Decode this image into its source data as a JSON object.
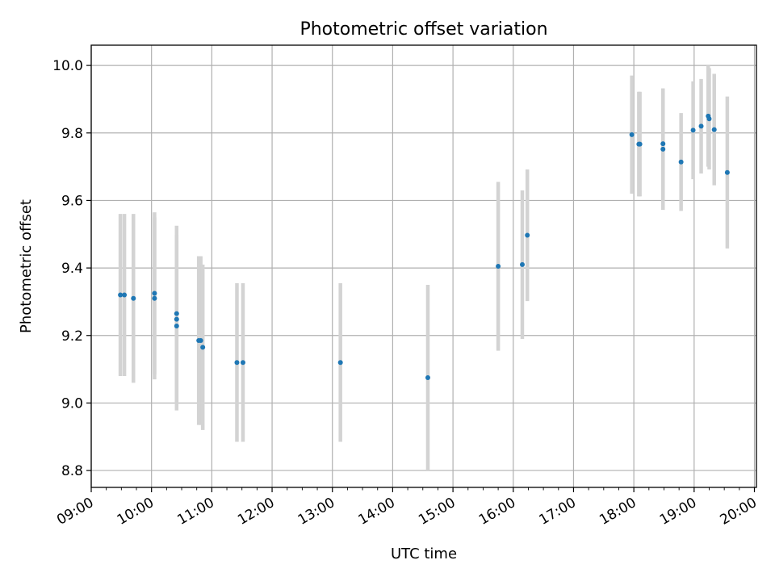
{
  "chart_data": {
    "type": "scatter",
    "title": "Photometric offset variation",
    "xlabel": "UTC time",
    "ylabel": "Photometric offset",
    "xlim": [
      "09:00",
      "20:02"
    ],
    "ylim": [
      8.75,
      10.06
    ],
    "x_ticks": [
      "09:00",
      "10:00",
      "11:00",
      "12:00",
      "13:00",
      "14:00",
      "15:00",
      "16:00",
      "17:00",
      "18:00",
      "19:00",
      "20:00"
    ],
    "y_ticks": [
      8.8,
      9.0,
      9.2,
      9.4,
      9.6,
      9.8,
      10.0
    ],
    "y_tick_labels": [
      "8.8",
      "9.0",
      "9.2",
      "9.4",
      "9.6",
      "9.8",
      "10.0"
    ],
    "grid": true,
    "colors": {
      "points": "#1f77b4",
      "errorbars": "#d3d3d3"
    },
    "series": [
      {
        "points": [
          {
            "t": "09:29",
            "y": 9.32,
            "err": 0.24
          },
          {
            "t": "09:33",
            "y": 9.32,
            "err": 0.24
          },
          {
            "t": "09:42",
            "y": 9.31,
            "err": 0.25
          },
          {
            "t": "10:03",
            "y": 9.325,
            "err": 0.24
          },
          {
            "t": "10:03",
            "y": 9.31,
            "err": 0.24
          },
          {
            "t": "10:25",
            "y": 9.265,
            "err": 0.26
          },
          {
            "t": "10:25",
            "y": 9.248,
            "err": 0.25
          },
          {
            "t": "10:25",
            "y": 9.228,
            "err": 0.25
          },
          {
            "t": "10:47",
            "y": 9.185,
            "err": 0.25
          },
          {
            "t": "10:49",
            "y": 9.185,
            "err": 0.25
          },
          {
            "t": "10:51",
            "y": 9.165,
            "err": 0.245
          },
          {
            "t": "11:25",
            "y": 9.12,
            "err": 0.235
          },
          {
            "t": "11:31",
            "y": 9.12,
            "err": 0.235
          },
          {
            "t": "13:08",
            "y": 9.12,
            "err": 0.235
          },
          {
            "t": "14:35",
            "y": 9.075,
            "err": 0.275
          },
          {
            "t": "15:45",
            "y": 9.405,
            "err": 0.25
          },
          {
            "t": "16:09",
            "y": 9.41,
            "err": 0.22
          },
          {
            "t": "16:14",
            "y": 9.497,
            "err": 0.195
          },
          {
            "t": "17:58",
            "y": 9.795,
            "err": 0.175
          },
          {
            "t": "18:05",
            "y": 9.767,
            "err": 0.155
          },
          {
            "t": "18:06",
            "y": 9.767,
            "err": 0.155
          },
          {
            "t": "18:29",
            "y": 9.768,
            "err": 0.16
          },
          {
            "t": "18:29",
            "y": 9.752,
            "err": 0.18
          },
          {
            "t": "18:47",
            "y": 9.714,
            "err": 0.145
          },
          {
            "t": "18:59",
            "y": 9.808,
            "err": 0.145
          },
          {
            "t": "19:07",
            "y": 9.82,
            "err": 0.14
          },
          {
            "t": "19:14",
            "y": 9.85,
            "err": 0.15
          },
          {
            "t": "19:15",
            "y": 9.842,
            "err": 0.15
          },
          {
            "t": "19:20",
            "y": 9.81,
            "err": 0.165
          },
          {
            "t": "19:33",
            "y": 9.683,
            "err": 0.225
          }
        ]
      }
    ]
  }
}
